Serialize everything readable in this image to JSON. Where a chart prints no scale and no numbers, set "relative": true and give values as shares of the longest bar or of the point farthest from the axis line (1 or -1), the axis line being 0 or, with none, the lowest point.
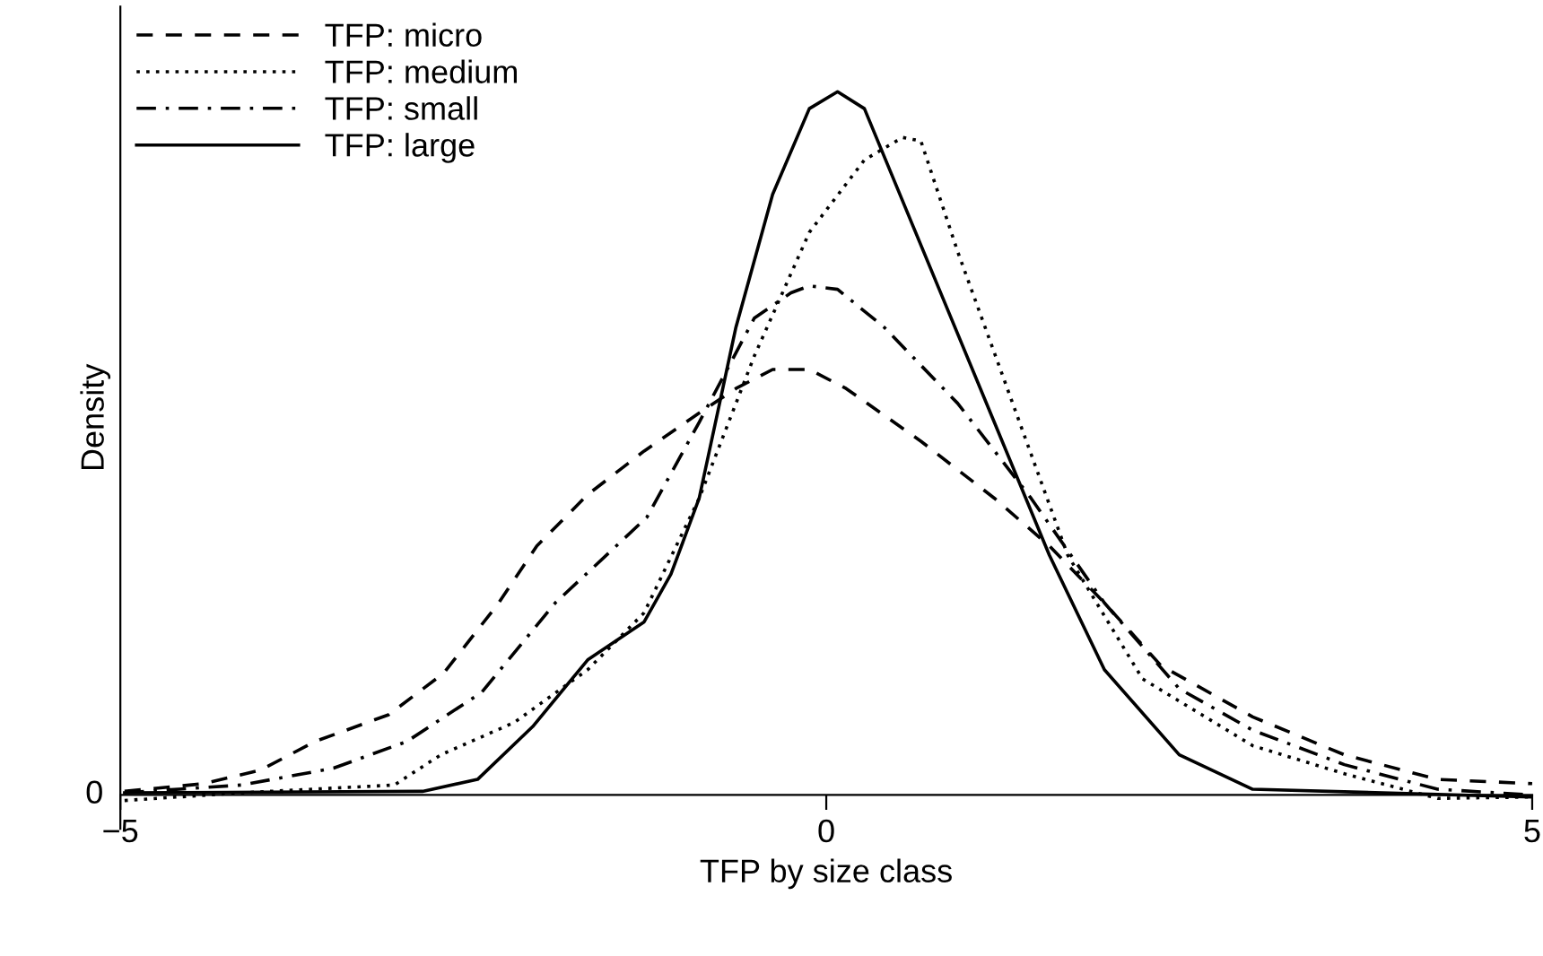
{
  "chart_data": {
    "type": "line",
    "relative": true,
    "xlabel": "TFP by size class",
    "ylabel": "Density",
    "xlim": [
      -5,
      5
    ],
    "xticks": [
      {
        "value": -5,
        "label": "−5"
      },
      0,
      5
    ],
    "annotations": [
      "0"
    ],
    "legend": "top left",
    "grid": false,
    "marker": "none",
    "series": [
      {
        "name": "TFP: micro",
        "color": "#000000",
        "line_style": "dashed",
        "x": [
          -4.97,
          -4.41,
          -4.01,
          -3.62,
          -3.1,
          -2.71,
          -2.32,
          -2.05,
          -1.69,
          -1.29,
          -0.9,
          -0.64,
          -0.38,
          -0.12,
          0.14,
          0.67,
          1.19,
          1.58,
          1.97,
          2.37,
          3.02,
          3.67,
          4.33,
          5.0
        ],
        "values": [
          0.005,
          0.016,
          0.035,
          0.076,
          0.114,
          0.173,
          0.273,
          0.354,
          0.427,
          0.489,
          0.543,
          0.578,
          0.605,
          0.605,
          0.578,
          0.503,
          0.422,
          0.354,
          0.273,
          0.184,
          0.111,
          0.057,
          0.022,
          0.016
        ]
      },
      {
        "name": "TFP: medium",
        "color": "#000000",
        "line_style": "dotted",
        "x": [
          -4.97,
          -4.14,
          -3.06,
          -2.73,
          -2.21,
          -1.69,
          -1.29,
          -0.9,
          -0.51,
          -0.12,
          0.27,
          0.54,
          0.67,
          0.93,
          1.32,
          1.71,
          2.24,
          3.02,
          3.67,
          4.33,
          5.0
        ],
        "values": [
          -0.008,
          0.003,
          0.014,
          0.057,
          0.103,
          0.178,
          0.259,
          0.422,
          0.624,
          0.8,
          0.903,
          0.935,
          0.93,
          0.773,
          0.557,
          0.341,
          0.165,
          0.07,
          0.03,
          -0.005,
          -0.003
        ]
      },
      {
        "name": "TFP: small",
        "color": "#000000",
        "line_style": "dashdot",
        "x": [
          -4.97,
          -4.14,
          -3.49,
          -2.97,
          -2.44,
          -1.92,
          -1.53,
          -1.27,
          -0.9,
          -0.51,
          -0.25,
          -0.12,
          0.08,
          0.41,
          0.93,
          1.45,
          1.97,
          2.5,
          3.02,
          3.67,
          4.33,
          5.0
        ],
        "values": [
          0.003,
          0.014,
          0.038,
          0.076,
          0.146,
          0.273,
          0.346,
          0.395,
          0.53,
          0.678,
          0.714,
          0.724,
          0.719,
          0.665,
          0.557,
          0.422,
          0.273,
          0.151,
          0.092,
          0.043,
          0.008,
          0.0
        ]
      },
      {
        "name": "TFP: large",
        "color": "#000000",
        "line_style": "solid",
        "x": [
          -4.97,
          -2.86,
          -2.47,
          -2.08,
          -1.69,
          -1.29,
          -1.1,
          -0.9,
          -0.64,
          -0.38,
          -0.12,
          0.08,
          0.27,
          0.41,
          0.8,
          1.19,
          1.58,
          1.97,
          2.5,
          3.02,
          5.0
        ],
        "values": [
          0.003,
          0.005,
          0.022,
          0.097,
          0.192,
          0.246,
          0.314,
          0.422,
          0.665,
          0.854,
          0.976,
          1.0,
          0.976,
          0.908,
          0.719,
          0.53,
          0.341,
          0.178,
          0.057,
          0.008,
          -0.003
        ]
      }
    ]
  }
}
